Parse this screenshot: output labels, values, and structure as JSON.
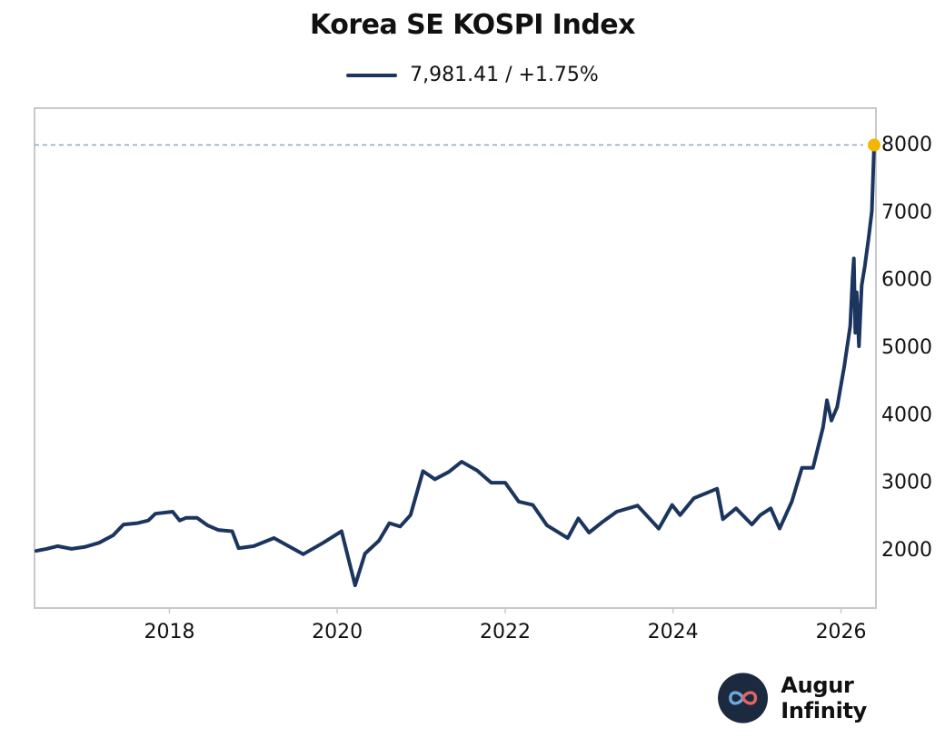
{
  "chart_data": {
    "type": "line",
    "title": "Korea SE KOSPI Index",
    "xlabel": "",
    "ylabel": "",
    "x_ticks": [
      "2018",
      "2020",
      "2022",
      "2024",
      "2026"
    ],
    "y_ticks": [
      2000,
      3000,
      4000,
      5000,
      6000,
      7000,
      8000
    ],
    "xlim": [
      "2016-06-01",
      "2026-05-25"
    ],
    "ylim": [
      1150,
      8500
    ],
    "y_axis_side": "right",
    "grid": false,
    "reference_line": {
      "value": 7981.41,
      "style": "dashed"
    },
    "last_point_marker": true,
    "series": [
      {
        "name": "7,981.41 / +1.75%",
        "x": [
          "2016-06-01",
          "2016-07-15",
          "2016-09-01",
          "2016-11-01",
          "2017-01-01",
          "2017-03-01",
          "2017-05-01",
          "2017-06-15",
          "2017-08-15",
          "2017-10-01",
          "2017-11-01",
          "2018-01-15",
          "2018-02-15",
          "2018-03-15",
          "2018-05-01",
          "2018-06-15",
          "2018-08-01",
          "2018-10-01",
          "2018-10-29",
          "2019-01-03",
          "2019-04-01",
          "2019-08-06",
          "2019-11-01",
          "2020-01-20",
          "2020-03-19",
          "2020-05-01",
          "2020-07-01",
          "2020-08-15",
          "2020-10-01",
          "2020-11-15",
          "2021-01-08",
          "2021-03-01",
          "2021-05-01",
          "2021-06-25",
          "2021-09-01",
          "2021-11-01",
          "2022-01-01",
          "2022-03-01",
          "2022-05-01",
          "2022-07-01",
          "2022-09-30",
          "2022-11-15",
          "2023-01-01",
          "2023-03-01",
          "2023-05-01",
          "2023-07-31",
          "2023-10-31",
          "2023-12-28",
          "2024-02-01",
          "2024-04-01",
          "2024-07-11",
          "2024-08-05",
          "2024-10-01",
          "2024-12-09",
          "2025-01-15",
          "2025-03-01",
          "2025-04-09",
          "2025-06-01",
          "2025-07-15",
          "2025-09-01",
          "2025-10-15",
          "2025-11-01",
          "2025-11-20",
          "2025-12-15",
          "2026-01-15",
          "2026-02-10",
          "2026-02-20",
          "2026-02-26",
          "2026-03-04",
          "2026-03-10",
          "2026-03-20",
          "2026-04-01",
          "2026-04-15",
          "2026-05-01",
          "2026-05-15",
          "2026-05-25"
        ],
        "values": [
          1970,
          2000,
          2040,
          2000,
          2030,
          2090,
          2200,
          2360,
          2380,
          2420,
          2520,
          2550,
          2420,
          2460,
          2460,
          2350,
          2280,
          2260,
          2010,
          2040,
          2160,
          1920,
          2090,
          2260,
          1460,
          1930,
          2120,
          2380,
          2330,
          2500,
          3150,
          3030,
          3140,
          3290,
          3160,
          2980,
          2980,
          2700,
          2650,
          2350,
          2160,
          2450,
          2240,
          2400,
          2550,
          2640,
          2300,
          2650,
          2500,
          2750,
          2890,
          2440,
          2600,
          2360,
          2500,
          2600,
          2300,
          2700,
          3200,
          3200,
          3800,
          4200,
          3900,
          4100,
          4700,
          5300,
          6000,
          6300,
          5200,
          5800,
          5000,
          5900,
          6200,
          6600,
          7000,
          7981.41
        ]
      }
    ]
  },
  "colors": {
    "line": "#1c355e",
    "marker": "#f2b705",
    "reference": "#8ea3b8",
    "frame": "#c8c8c8"
  },
  "brand": {
    "name": "Augur Infinity",
    "icon": "infinity-logo-icon"
  }
}
